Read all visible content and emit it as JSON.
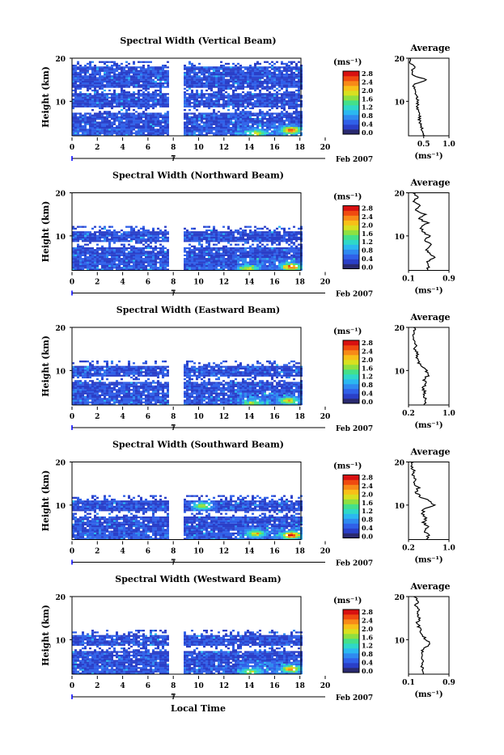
{
  "colors": {
    "colormap": [
      "#2a2a70",
      "#2a3fc8",
      "#3060e8",
      "#2f8af0",
      "#2bb8f0",
      "#2fd8c8",
      "#44e08a",
      "#8fe040",
      "#d8e020",
      "#f8c018",
      "#f88a18",
      "#f04a10",
      "#d81010"
    ],
    "background": "#ffffff",
    "frame": "#000000"
  },
  "footer": {
    "xlabel": "Local Time"
  },
  "chart_data": [
    {
      "type": "heatmap",
      "title": "Spectral Width (Vertical Beam)",
      "ylabel": "Height (km)",
      "yticks": [
        "20",
        "10"
      ],
      "xticks": [
        "0",
        "2",
        "4",
        "6",
        "8",
        "10",
        "12",
        "14",
        "16",
        "18",
        "20"
      ],
      "xlim": [
        0,
        20
      ],
      "ylim": [
        2,
        20
      ],
      "date_tick": "7",
      "date_label": "Feb 2007",
      "colorbar": {
        "unit": "(ms⁻¹)",
        "ticks": [
          "2.8",
          "2.4",
          "2.0",
          "1.6",
          "1.2",
          "0.8",
          "0.4",
          "0.0"
        ],
        "range": [
          0,
          2.8
        ]
      },
      "data_gaps": [
        [
          7.6,
          8.8
        ]
      ],
      "upper_cutoff_km": 19,
      "hotspots": [
        {
          "t": 17.2,
          "h": 3.5,
          "v": 2.4
        },
        {
          "t": 14.5,
          "h": 2.8,
          "v": 1.8
        }
      ],
      "average": {
        "title": "Average",
        "xlabel": "(ms⁻¹)",
        "xticks": [
          "0.5",
          "1.0"
        ],
        "xlim": [
          0.2,
          1.0
        ],
        "ylim": [
          2,
          20
        ],
        "yticks": [
          "20",
          "10"
        ],
        "profile": [
          [
            2,
            0.52
          ],
          [
            3,
            0.48
          ],
          [
            4,
            0.45
          ],
          [
            5,
            0.42
          ],
          [
            6,
            0.42
          ],
          [
            7,
            0.4
          ],
          [
            8,
            0.38
          ],
          [
            9,
            0.37
          ],
          [
            10,
            0.38
          ],
          [
            11,
            0.36
          ],
          [
            12,
            0.35
          ],
          [
            13,
            0.32
          ],
          [
            14,
            0.3
          ],
          [
            15,
            0.56
          ],
          [
            16,
            0.3
          ],
          [
            17,
            0.26
          ],
          [
            18,
            0.32
          ],
          [
            19,
            0.24
          ],
          [
            20,
            0.22
          ]
        ]
      }
    },
    {
      "type": "heatmap",
      "title": "Spectral Width (Northward Beam)",
      "ylabel": "Height (km)",
      "yticks": [
        "20",
        "10"
      ],
      "xticks": [
        "0",
        "2",
        "4",
        "6",
        "8",
        "10",
        "12",
        "14",
        "16",
        "18",
        "20"
      ],
      "xlim": [
        0,
        20
      ],
      "ylim": [
        2,
        20
      ],
      "date_tick": "7",
      "date_label": "Feb 2007",
      "colorbar": {
        "unit": "(ms⁻¹)",
        "ticks": [
          "2.8",
          "2.4",
          "2.0",
          "1.6",
          "1.2",
          "0.8",
          "0.4",
          "0.0"
        ],
        "range": [
          0,
          2.8
        ]
      },
      "data_gaps": [
        [
          7.6,
          8.8
        ]
      ],
      "upper_cutoff_km": 12,
      "hotspots": [
        {
          "t": 17.2,
          "h": 3.0,
          "v": 2.4
        },
        {
          "t": 13.8,
          "h": 2.6,
          "v": 1.8
        }
      ],
      "average": {
        "title": "Average",
        "xlabel": "(ms⁻¹)",
        "xticks": [
          "0.1",
          "0.9"
        ],
        "xlim": [
          0.1,
          0.9
        ],
        "ylim": [
          2,
          20
        ],
        "yticks": [
          "20",
          "10"
        ],
        "profile": [
          [
            2,
            0.45
          ],
          [
            3,
            0.52
          ],
          [
            4,
            0.48
          ],
          [
            5,
            0.62
          ],
          [
            6,
            0.5
          ],
          [
            7,
            0.45
          ],
          [
            8,
            0.55
          ],
          [
            9,
            0.42
          ],
          [
            10,
            0.5
          ],
          [
            11,
            0.4
          ],
          [
            12,
            0.34
          ],
          [
            13,
            0.48
          ],
          [
            14,
            0.3
          ],
          [
            15,
            0.42
          ],
          [
            16,
            0.25
          ],
          [
            17,
            0.35
          ],
          [
            18,
            0.2
          ],
          [
            19,
            0.28
          ],
          [
            20,
            0.18
          ]
        ]
      }
    },
    {
      "type": "heatmap",
      "title": "Spectral Width (Eastward Beam)",
      "ylabel": "Height (km)",
      "yticks": [
        "20",
        "10"
      ],
      "xticks": [
        "0",
        "2",
        "4",
        "6",
        "8",
        "10",
        "12",
        "14",
        "16",
        "18",
        "20"
      ],
      "xlim": [
        0,
        20
      ],
      "ylim": [
        2,
        20
      ],
      "date_tick": "7",
      "date_label": "Feb 2007",
      "colorbar": {
        "unit": "(ms⁻¹)",
        "ticks": [
          "2.8",
          "2.4",
          "2.0",
          "1.6",
          "1.2",
          "0.8",
          "0.4",
          "0.0"
        ],
        "range": [
          0,
          2.8
        ]
      },
      "data_gaps": [
        [
          7.6,
          8.8
        ]
      ],
      "upper_cutoff_km": 12,
      "hotspots": [
        {
          "t": 17.0,
          "h": 3.2,
          "v": 2.0
        },
        {
          "t": 14.2,
          "h": 2.6,
          "v": 1.6
        }
      ],
      "average": {
        "title": "Average",
        "xlabel": "(ms⁻¹)",
        "xticks": [
          "0.2",
          "1.0"
        ],
        "xlim": [
          0.2,
          1.0
        ],
        "ylim": [
          2,
          20
        ],
        "yticks": [
          "20",
          "10"
        ],
        "profile": [
          [
            2,
            0.5
          ],
          [
            3,
            0.55
          ],
          [
            4,
            0.5
          ],
          [
            5,
            0.52
          ],
          [
            6,
            0.48
          ],
          [
            7,
            0.55
          ],
          [
            8,
            0.5
          ],
          [
            9,
            0.6
          ],
          [
            10,
            0.55
          ],
          [
            11,
            0.45
          ],
          [
            12,
            0.4
          ],
          [
            13,
            0.35
          ],
          [
            14,
            0.38
          ],
          [
            15,
            0.32
          ],
          [
            16,
            0.35
          ],
          [
            17,
            0.3
          ],
          [
            18,
            0.28
          ],
          [
            19,
            0.32
          ],
          [
            20,
            0.3
          ]
        ]
      }
    },
    {
      "type": "heatmap",
      "title": "Spectral Width (Southward Beam)",
      "ylabel": "Height (km)",
      "yticks": [
        "20",
        "10"
      ],
      "xticks": [
        "0",
        "2",
        "4",
        "6",
        "8",
        "10",
        "12",
        "14",
        "16",
        "18",
        "20"
      ],
      "xlim": [
        0,
        20
      ],
      "ylim": [
        2,
        20
      ],
      "date_tick": "7",
      "date_label": "Feb 2007",
      "colorbar": {
        "unit": "(ms⁻¹)",
        "ticks": [
          "2.8",
          "2.4",
          "2.0",
          "1.6",
          "1.2",
          "0.8",
          "0.4",
          "0.0"
        ],
        "range": [
          0,
          2.8
        ]
      },
      "data_gaps": [
        [
          7.6,
          8.8
        ]
      ],
      "upper_cutoff_km": 12,
      "hotspots": [
        {
          "t": 17.2,
          "h": 3.2,
          "v": 2.6
        },
        {
          "t": 14.4,
          "h": 3.6,
          "v": 1.8
        },
        {
          "t": 10.2,
          "h": 10,
          "v": 1.6
        }
      ],
      "average": {
        "title": "Average",
        "xlabel": "(ms⁻¹)",
        "xticks": [
          "0.2",
          "1.0"
        ],
        "xlim": [
          0.2,
          1.0
        ],
        "ylim": [
          2,
          20
        ],
        "yticks": [
          "20",
          "10"
        ],
        "profile": [
          [
            2,
            0.55
          ],
          [
            3,
            0.6
          ],
          [
            4,
            0.52
          ],
          [
            5,
            0.58
          ],
          [
            6,
            0.5
          ],
          [
            7,
            0.55
          ],
          [
            8,
            0.48
          ],
          [
            9,
            0.5
          ],
          [
            10,
            0.7
          ],
          [
            11,
            0.6
          ],
          [
            12,
            0.42
          ],
          [
            13,
            0.35
          ],
          [
            14,
            0.4
          ],
          [
            15,
            0.3
          ],
          [
            16,
            0.36
          ],
          [
            17,
            0.26
          ],
          [
            18,
            0.32
          ],
          [
            19,
            0.24
          ],
          [
            20,
            0.3
          ]
        ]
      }
    },
    {
      "type": "heatmap",
      "title": "Spectral Width (Westward Beam)",
      "ylabel": "Height (km)",
      "yticks": [
        "20",
        "10"
      ],
      "xticks": [
        "0",
        "2",
        "4",
        "6",
        "8",
        "10",
        "12",
        "14",
        "16",
        "18",
        "20"
      ],
      "xlim": [
        0,
        20
      ],
      "ylim": [
        2,
        20
      ],
      "date_tick": "7",
      "date_label": "Feb 2007",
      "colorbar": {
        "unit": "(ms⁻¹)",
        "ticks": [
          "2.8",
          "2.4",
          "2.0",
          "1.6",
          "1.2",
          "0.8",
          "0.4",
          "0.0"
        ],
        "range": [
          0,
          2.8
        ]
      },
      "data_gaps": [
        [
          7.6,
          8.8
        ]
      ],
      "upper_cutoff_km": 12,
      "hotspots": [
        {
          "t": 17.2,
          "h": 3.4,
          "v": 2.2
        },
        {
          "t": 14.0,
          "h": 2.8,
          "v": 1.6
        }
      ],
      "average": {
        "title": "Average",
        "xlabel": "(ms⁻¹)",
        "xticks": [
          "0.1",
          "0.9"
        ],
        "xlim": [
          0.1,
          0.9
        ],
        "ylim": [
          2,
          20
        ],
        "yticks": [
          "20",
          "10"
        ],
        "profile": [
          [
            2,
            0.42
          ],
          [
            3,
            0.38
          ],
          [
            4,
            0.36
          ],
          [
            5,
            0.4
          ],
          [
            6,
            0.38
          ],
          [
            7,
            0.36
          ],
          [
            8,
            0.4
          ],
          [
            9,
            0.52
          ],
          [
            10,
            0.45
          ],
          [
            11,
            0.38
          ],
          [
            12,
            0.33
          ],
          [
            13,
            0.3
          ],
          [
            14,
            0.28
          ],
          [
            15,
            0.32
          ],
          [
            16,
            0.26
          ],
          [
            17,
            0.3
          ],
          [
            18,
            0.22
          ],
          [
            19,
            0.3
          ],
          [
            20,
            0.2
          ]
        ]
      }
    }
  ]
}
